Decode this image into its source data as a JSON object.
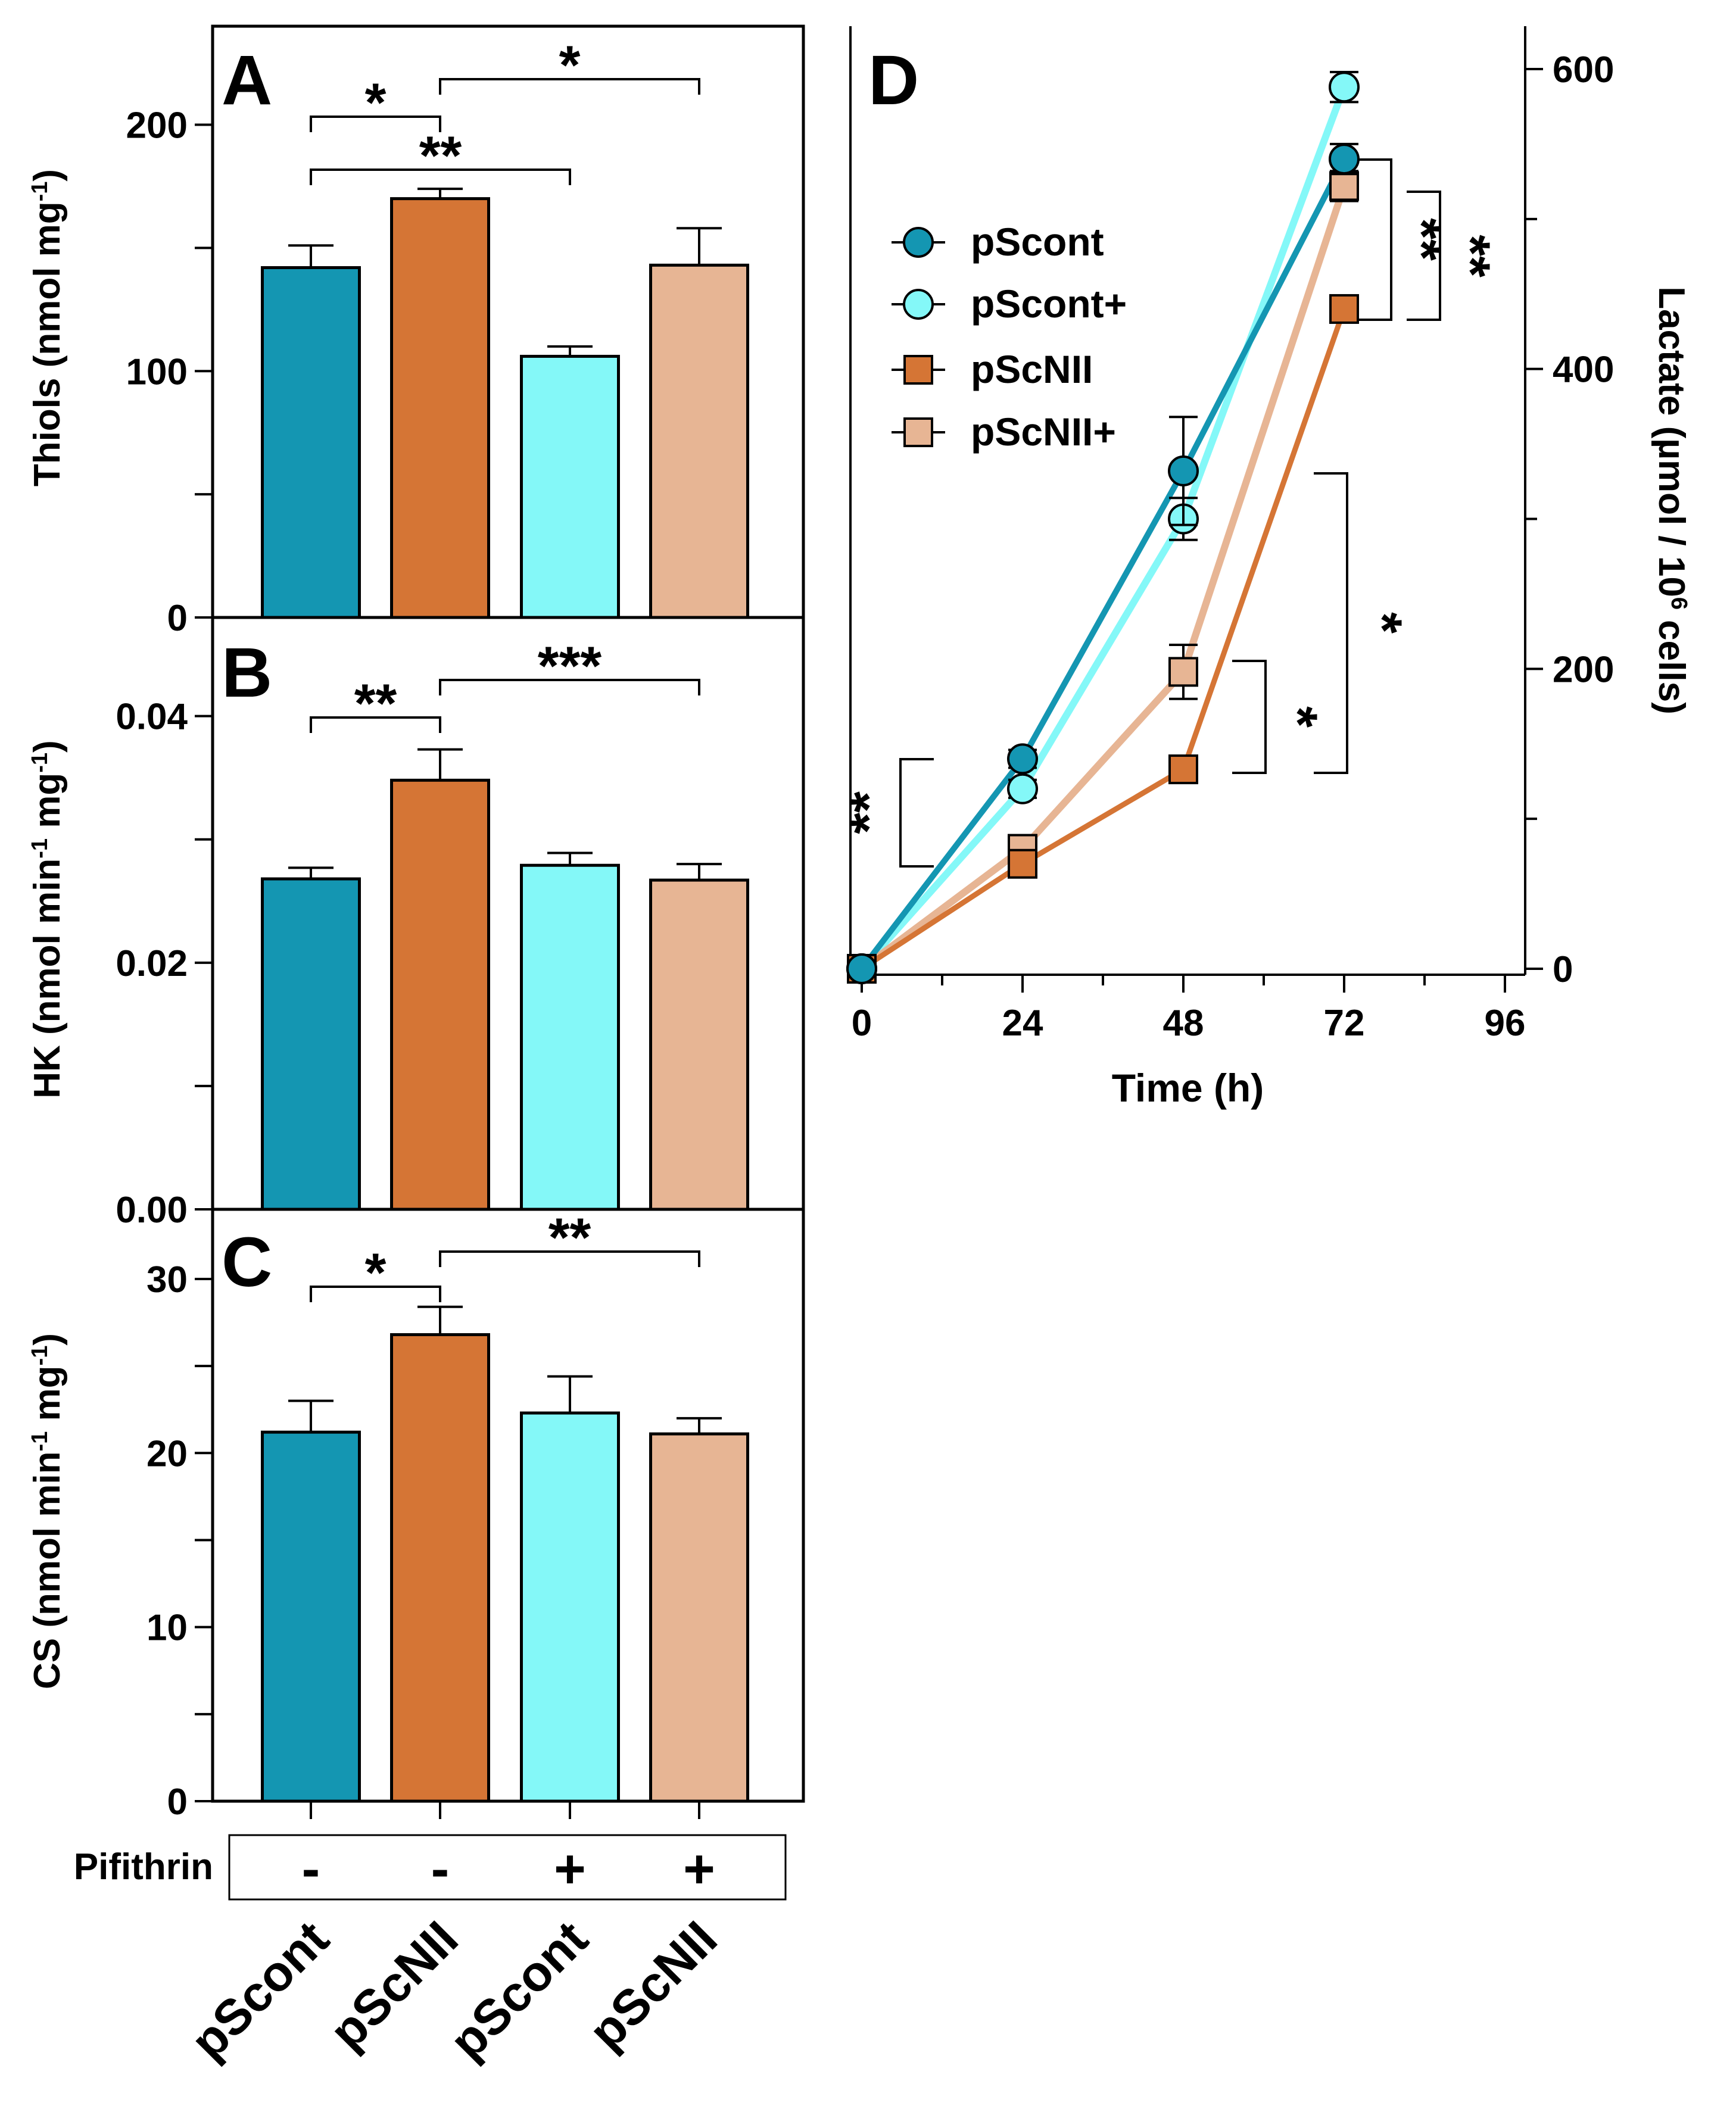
{
  "colors": {
    "pScont": "#1496b2",
    "pScNII": "#d57535",
    "pScont_plus": "#84f8f8",
    "pScNII_plus": "#e7b594",
    "axis": "#000000"
  },
  "chart_data": [
    {
      "panel": "A",
      "type": "bar",
      "ylabel": "Thiols (nmol mg-1)",
      "ylim": [
        0,
        240
      ],
      "yticks": [
        0,
        100,
        200
      ],
      "yticks_label": [
        "0",
        "100",
        "200"
      ],
      "series": [
        {
          "name": "pScont",
          "pifithrin": "-",
          "value": 142,
          "error": 9
        },
        {
          "name": "pScNII",
          "pifithrin": "-",
          "value": 170,
          "error": 4
        },
        {
          "name": "pScont",
          "pifithrin": "+",
          "value": 106,
          "error": 4
        },
        {
          "name": "pScNII",
          "pifithrin": "+",
          "value": 143,
          "error": 15
        }
      ],
      "significance": [
        {
          "from": 0,
          "to": 1,
          "label": "*"
        },
        {
          "from": 1,
          "to": 3,
          "label": "*"
        },
        {
          "from": 0,
          "to": 2,
          "label": "**"
        }
      ]
    },
    {
      "panel": "B",
      "type": "bar",
      "ylabel": "HK (nmol min-1 mg-1)",
      "ylim": [
        0,
        0.048
      ],
      "yticks": [
        0,
        0.02,
        0.04
      ],
      "yticks_label": [
        "0.00",
        "0.02",
        "0.04"
      ],
      "series": [
        {
          "name": "pScont",
          "pifithrin": "-",
          "value": 0.0268,
          "error": 0.0009
        },
        {
          "name": "pScNII",
          "pifithrin": "-",
          "value": 0.0348,
          "error": 0.0025
        },
        {
          "name": "pScont",
          "pifithrin": "+",
          "value": 0.0279,
          "error": 0.001
        },
        {
          "name": "pScNII",
          "pifithrin": "+",
          "value": 0.0267,
          "error": 0.0013
        }
      ],
      "significance": [
        {
          "from": 0,
          "to": 1,
          "label": "**"
        },
        {
          "from": 1,
          "to": 3,
          "label": "***"
        }
      ]
    },
    {
      "panel": "C",
      "type": "bar",
      "ylabel": "CS (nmol min-1 mg-1)",
      "ylim": [
        0,
        34
      ],
      "yticks": [
        0,
        10,
        20,
        30
      ],
      "yticks_label": [
        "0",
        "10",
        "20",
        "30"
      ],
      "series": [
        {
          "name": "pScont",
          "pifithrin": "-",
          "value": 21.2,
          "error": 1.8
        },
        {
          "name": "pScNII",
          "pifithrin": "-",
          "value": 26.8,
          "error": 1.6
        },
        {
          "name": "pScont",
          "pifithrin": "+",
          "value": 22.3,
          "error": 2.1
        },
        {
          "name": "pScNII",
          "pifithrin": "+",
          "value": 21.1,
          "error": 0.9
        }
      ],
      "significance": [
        {
          "from": 0,
          "to": 1,
          "label": "*"
        },
        {
          "from": 1,
          "to": 3,
          "label": "**"
        }
      ]
    },
    {
      "panel": "D",
      "type": "line",
      "xlabel": "Time (h)",
      "ylabel": "Lactate (µmol / 106 cells)",
      "xlim": [
        0,
        96
      ],
      "ylim": [
        0,
        600
      ],
      "xticks": [
        0,
        24,
        48,
        72,
        96
      ],
      "yticks": [
        0,
        200,
        400,
        600
      ],
      "x": [
        0,
        24,
        48,
        72
      ],
      "series": [
        {
          "name": "pScont",
          "marker": "circle",
          "values": [
            0,
            140,
            332,
            540
          ],
          "errors": [
            0,
            6,
            36,
            10
          ]
        },
        {
          "name": "pScont+",
          "marker": "circle",
          "values": [
            0,
            120,
            300,
            588
          ],
          "errors": [
            0,
            6,
            14,
            10
          ]
        },
        {
          "name": "pScNII",
          "marker": "square",
          "values": [
            0,
            70,
            133,
            440
          ],
          "errors": [
            0,
            5,
            5,
            8
          ]
        },
        {
          "name": "pScNII+",
          "marker": "square",
          "values": [
            0,
            80,
            198,
            522
          ],
          "errors": [
            0,
            5,
            18,
            10
          ]
        }
      ],
      "significance": [
        {
          "x": 24,
          "label": "**"
        },
        {
          "x": 48,
          "label": "*"
        },
        {
          "x": 48,
          "label": "*"
        },
        {
          "x": 72,
          "label": "**"
        },
        {
          "x": 72,
          "label": "**"
        }
      ]
    }
  ],
  "pifithrin_row": {
    "label": "Pifithrin",
    "signs": [
      "-",
      "-",
      "+",
      "+"
    ]
  },
  "categories": [
    "pScont",
    "pScNII",
    "pScont",
    "pScNII"
  ],
  "legend": [
    "pScont",
    "pScont+",
    "pScNII",
    "pScNII+"
  ]
}
